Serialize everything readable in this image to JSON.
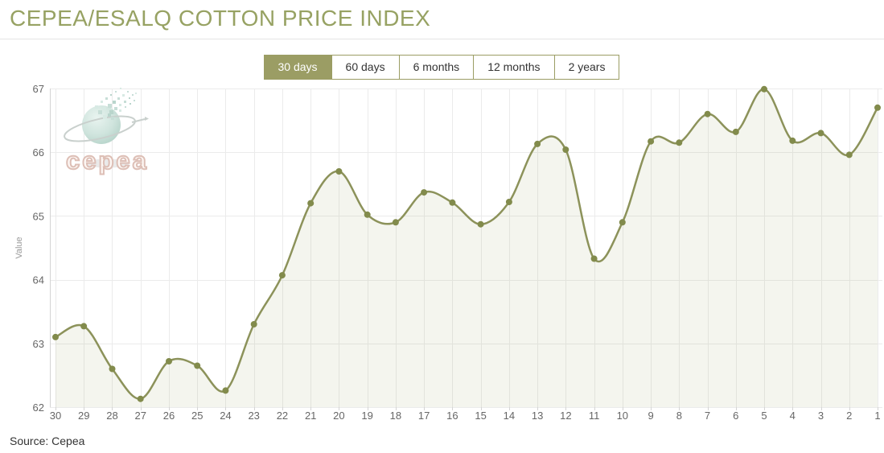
{
  "header": {
    "title": "CEPEA/ESALQ COTTON PRICE INDEX"
  },
  "time_ranges": {
    "items": [
      {
        "label": "30 days",
        "active": true
      },
      {
        "label": "60 days",
        "active": false
      },
      {
        "label": "6 months",
        "active": false
      },
      {
        "label": "12 months",
        "active": false
      },
      {
        "label": "2 years",
        "active": false
      }
    ]
  },
  "chart_data": {
    "type": "area",
    "title": "CEPEA/ESALQ COTTON PRICE INDEX",
    "xlabel": "",
    "ylabel": "Value",
    "categories": [
      "30",
      "29",
      "28",
      "27",
      "26",
      "25",
      "24",
      "23",
      "22",
      "21",
      "20",
      "19",
      "18",
      "17",
      "16",
      "15",
      "14",
      "13",
      "12",
      "11",
      "10",
      "9",
      "8",
      "7",
      "6",
      "5",
      "4",
      "3",
      "2",
      "1"
    ],
    "values": [
      63.1,
      63.27,
      62.6,
      62.13,
      62.72,
      62.65,
      62.26,
      63.3,
      64.07,
      65.2,
      65.7,
      65.02,
      64.9,
      65.37,
      65.21,
      64.87,
      65.22,
      66.13,
      66.04,
      64.33,
      64.9,
      66.17,
      66.15,
      66.6,
      66.32,
      66.99,
      66.18,
      66.3,
      65.96,
      66.7
    ],
    "ylim": [
      62,
      67
    ],
    "yticks": [
      62,
      63,
      64,
      65,
      66,
      67
    ],
    "grid": true,
    "legend": "none",
    "line_color": "#8c925a",
    "point_color": "#828b4c",
    "area_color": "rgba(148,155,90,0.10)",
    "grid_color": "#ebebeb",
    "axis_color": "#d4d4d4",
    "tick_label_color": "#666666"
  },
  "watermark": {
    "logo_text": "cepea"
  },
  "footer": {
    "source": "Source: Cepea"
  },
  "colors": {
    "accent": "#9b9d64",
    "title": "#97a263",
    "logo_text": "#ddbfb6",
    "logo_sphere": "#c3dcd3"
  }
}
